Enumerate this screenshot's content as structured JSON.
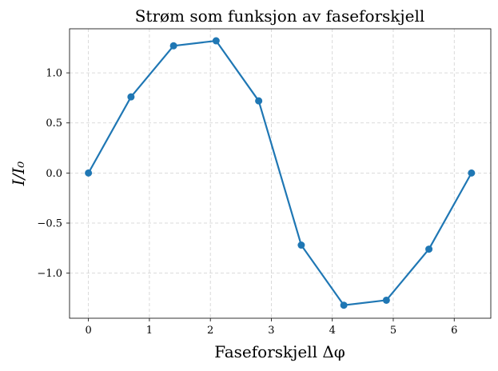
{
  "chart_data": {
    "type": "line",
    "title": "Strøm som funksjon av faseforskjell",
    "xlabel": "Faseforskjell Δφ",
    "ylabel": "I/I₀",
    "xlim": [
      -0.31,
      6.6
    ],
    "ylim": [
      -1.45,
      1.44
    ],
    "xticks": [
      0,
      1,
      2,
      3,
      4,
      5,
      6
    ],
    "xtick_labels": [
      "0",
      "1",
      "2",
      "3",
      "4",
      "5",
      "6"
    ],
    "yticks": [
      -1.0,
      -0.5,
      0.0,
      0.5,
      1.0
    ],
    "ytick_labels": [
      "−1.0",
      "−0.5",
      "0.0",
      "0.5",
      "1.0"
    ],
    "grid": true,
    "series": [
      {
        "color": "#1f77b4",
        "marker": "circle",
        "x": [
          0.0,
          0.698,
          1.396,
          2.094,
          2.793,
          3.491,
          4.189,
          4.887,
          5.585,
          6.283
        ],
        "y": [
          0.0,
          0.76,
          1.27,
          1.32,
          0.72,
          -0.72,
          -1.32,
          -1.27,
          -0.76,
          0.0
        ]
      }
    ]
  }
}
